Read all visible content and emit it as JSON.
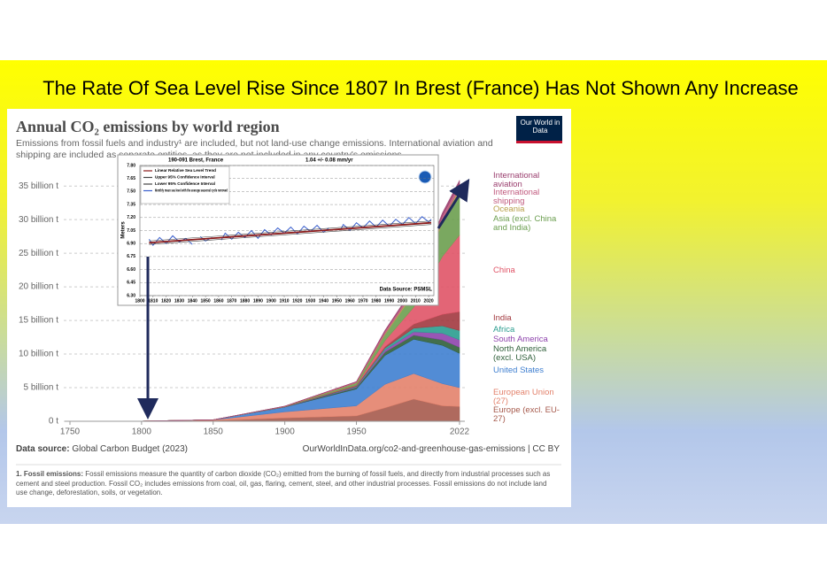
{
  "slide_title": "The Rate Of Sea Level Rise Since 1807 In Brest (France) Has Not Shown Any Increase",
  "chart_data": [
    {
      "type": "area",
      "stacked": true,
      "title": "Annual CO₂ emissions by world region",
      "subtitle": "Emissions from fossil fuels and industry¹ are included, but not land-use change emissions. International aviation and shipping are included as separate entities, as they are not included in any country's emissions.",
      "logo": "Our World in Data",
      "source_label": "Data source:",
      "source": "Global Carbon Budget (2023)",
      "url": "OurWorldInData.org/co2-and-greenhouse-gas-emissions | CC BY",
      "footnote_label": "1. Fossil emissions:",
      "footnote": "Fossil emissions measure the quantity of carbon dioxide (CO₂) emitted from the burning of fossil fuels, and directly from industrial processes such as cement and steel production. Fossil CO₂ includes emissions from coal, oil, gas, flaring, cement, steel, and other industrial processes. Fossil emissions do not include land use change, deforestation, soils, or vegetation.",
      "x": [
        1750,
        1800,
        1850,
        1900,
        1950,
        1970,
        1990,
        2010,
        2022
      ],
      "xlim": [
        1750,
        2022
      ],
      "xticks": [
        1750,
        1800,
        1850,
        1900,
        1950,
        2022
      ],
      "ylim": [
        0,
        37000000000
      ],
      "yticks": [
        {
          "value": 0,
          "label": "0 t"
        },
        {
          "value": 5000000000,
          "label": "5 billion t"
        },
        {
          "value": 10000000000,
          "label": "10 billion t"
        },
        {
          "value": 15000000000,
          "label": "15 billion t"
        },
        {
          "value": 20000000000,
          "label": "20 billion t"
        },
        {
          "value": 25000000000,
          "label": "25 billion t"
        },
        {
          "value": 30000000000,
          "label": "30 billion t"
        },
        {
          "value": 35000000000,
          "label": "35 billion t"
        }
      ],
      "grid": true,
      "series": [
        {
          "name": "Europe (excl. EU-27)",
          "color": "#a65a4c",
          "values": [
            9000000,
            20000000,
            100000000,
            500000000,
            800000000,
            2000000000,
            3300000000,
            2300000000,
            2200000000
          ]
        },
        {
          "name": "European Union (27)",
          "color": "#e3826c",
          "values": [
            1000000,
            10000000,
            100000000,
            900000000,
            1500000000,
            3500000000,
            3800000000,
            3300000000,
            2800000000
          ]
        },
        {
          "name": "United States",
          "color": "#3f7fd0",
          "values": [
            0,
            0,
            20000000,
            700000000,
            2500000000,
            4300000000,
            5100000000,
            5700000000,
            5100000000
          ]
        },
        {
          "name": "North America (excl. USA)",
          "color": "#2f5f3a",
          "values": [
            0,
            0,
            0,
            30000000,
            200000000,
            500000000,
            600000000,
            800000000,
            900000000
          ]
        },
        {
          "name": "South America",
          "color": "#8e44ad",
          "values": [
            0,
            0,
            0,
            10000000,
            100000000,
            300000000,
            500000000,
            1000000000,
            1100000000
          ]
        },
        {
          "name": "Africa",
          "color": "#2a9d8f",
          "values": [
            0,
            0,
            0,
            10000000,
            100000000,
            300000000,
            550000000,
            1100000000,
            1400000000
          ]
        },
        {
          "name": "India",
          "color": "#a2393f",
          "values": [
            0,
            0,
            0,
            10000000,
            100000000,
            200000000,
            600000000,
            1700000000,
            2800000000
          ]
        },
        {
          "name": "China",
          "color": "#e05467",
          "values": [
            0,
            0,
            0,
            10000000,
            80000000,
            900000000,
            2500000000,
            8600000000,
            11400000000
          ]
        },
        {
          "name": "Asia (excl. China and India)",
          "color": "#6b9e4f",
          "values": [
            0,
            0,
            0,
            20000000,
            300000000,
            900000000,
            2000000000,
            5000000000,
            6500000000
          ]
        },
        {
          "name": "Oceania",
          "color": "#b8a04a",
          "values": [
            0,
            0,
            0,
            10000000,
            50000000,
            150000000,
            300000000,
            450000000,
            450000000
          ]
        },
        {
          "name": "International shipping",
          "color": "#c0597d",
          "values": [
            0,
            0,
            0,
            50000000,
            150000000,
            350000000,
            450000000,
            600000000,
            700000000
          ]
        },
        {
          "name": "International aviation",
          "color": "#9a3e6e",
          "values": [
            0,
            0,
            0,
            0,
            30000000,
            170000000,
            250000000,
            450000000,
            500000000
          ]
        }
      ]
    },
    {
      "type": "line",
      "title": "190-091 Brest, France",
      "subtitle": "1.04 +/- 0.08 mm/yr",
      "ylabel": "Meters",
      "source": "Data Source: PSMSL",
      "xlim": [
        1800,
        2024
      ],
      "xticks": [
        1800,
        1810,
        1820,
        1830,
        1840,
        1850,
        1860,
        1870,
        1880,
        1890,
        1900,
        1910,
        1920,
        1930,
        1940,
        1950,
        1960,
        1970,
        1980,
        1990,
        2000,
        2010,
        2020
      ],
      "ylim": [
        6.3,
        7.8
      ],
      "yticks": [
        {
          "value": 7.8,
          "label": "7.80"
        },
        7.65,
        {
          "value": 7.5,
          "label": "7.50"
        },
        7.35,
        {
          "value": 7.2,
          "label": "7.20"
        },
        7.05,
        {
          "value": 6.9,
          "label": "6.90"
        },
        6.75,
        {
          "value": 6.6,
          "label": "6.60"
        },
        6.45,
        {
          "value": 6.3,
          "label": "6.30"
        }
      ],
      "grid": true,
      "series": [
        {
          "name": "Linear Relative Sea Level Trend",
          "color": "#8b1a1a",
          "x": [
            1807,
            2022
          ],
          "values": [
            6.91,
            7.14
          ]
        },
        {
          "name": "Upper 95% Confidence Interval",
          "color": "#444444",
          "x": [
            1807,
            2022
          ],
          "values": [
            6.93,
            7.16
          ]
        },
        {
          "name": "Lower 95% Confidence Interval",
          "color": "#444444",
          "x": [
            1807,
            2022
          ],
          "values": [
            6.89,
            7.12
          ]
        },
        {
          "name": "Monthly mean sea level with the average seasonal cycle removed",
          "color": "#3a5fcd",
          "x": [
            1807,
            1810,
            1815,
            1820,
            1825,
            1830,
            1835,
            1840,
            1843,
            1846,
            1850,
            1855,
            1858,
            1862,
            1865,
            1870,
            1875,
            1880,
            1885,
            1890,
            1895,
            1900,
            1905,
            1910,
            1915,
            1920,
            1925,
            1930,
            1935,
            1940,
            1944,
            1949,
            1953,
            1955,
            1960,
            1965,
            1970,
            1975,
            1980,
            1985,
            1990,
            1995,
            2000,
            2005,
            2010,
            2015,
            2020,
            2022
          ],
          "values": [
            6.95,
            6.88,
            6.97,
            6.9,
            6.99,
            6.92,
            6.96,
            6.89,
            null,
            6.98,
            6.93,
            6.97,
            null,
            6.94,
            7.02,
            6.95,
            7.03,
            6.97,
            7.05,
            6.96,
            7.06,
            7.0,
            7.08,
            7.02,
            7.09,
            7.01,
            7.1,
            7.04,
            7.11,
            7.03,
            7.08,
            null,
            7.06,
            7.12,
            7.05,
            7.14,
            7.08,
            7.16,
            7.09,
            7.17,
            7.1,
            7.18,
            7.12,
            7.2,
            7.13,
            7.21,
            7.15,
            7.18
          ]
        }
      ]
    }
  ]
}
